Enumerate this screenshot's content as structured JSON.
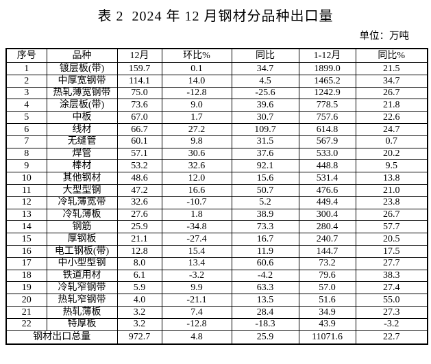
{
  "title": "表 2  2024 年 12 月钢材分品种出口量",
  "unit": "单位：万吨",
  "table": {
    "columns": [
      "序号",
      "品种",
      "12月",
      "环比%",
      "同比",
      "1-12月",
      "同比%"
    ],
    "rows": [
      {
        "no": "1",
        "name": "镀层板(带)",
        "values": [
          "159.7",
          "0.1",
          "34.7",
          "1899.0",
          "21.5"
        ]
      },
      {
        "no": "2",
        "name": "中厚宽钢带",
        "values": [
          "114.1",
          "14.0",
          "4.5",
          "1465.2",
          "34.7"
        ]
      },
      {
        "no": "3",
        "name": "热轧薄宽钢带",
        "values": [
          "75.0",
          "-12.8",
          "-25.6",
          "1242.9",
          "26.7"
        ]
      },
      {
        "no": "4",
        "name": "涂层板(带)",
        "values": [
          "73.6",
          "9.0",
          "39.6",
          "778.5",
          "21.8"
        ]
      },
      {
        "no": "5",
        "name": "中板",
        "values": [
          "67.0",
          "1.7",
          "30.7",
          "757.6",
          "22.6"
        ]
      },
      {
        "no": "6",
        "name": "线材",
        "values": [
          "66.7",
          "27.2",
          "109.7",
          "614.8",
          "24.7"
        ]
      },
      {
        "no": "7",
        "name": "无缝管",
        "values": [
          "60.1",
          "9.8",
          "31.5",
          "567.9",
          "0.7"
        ]
      },
      {
        "no": "8",
        "name": "焊管",
        "values": [
          "57.1",
          "30.6",
          "37.6",
          "533.0",
          "20.2"
        ]
      },
      {
        "no": "9",
        "name": "棒材",
        "values": [
          "53.2",
          "32.6",
          "92.1",
          "448.8",
          "9.5"
        ]
      },
      {
        "no": "10",
        "name": "其他钢材",
        "values": [
          "48.6",
          "12.0",
          "15.6",
          "531.4",
          "13.8"
        ]
      },
      {
        "no": "11",
        "name": "大型型钢",
        "values": [
          "47.2",
          "16.6",
          "50.7",
          "476.6",
          "21.0"
        ]
      },
      {
        "no": "12",
        "name": "冷轧薄宽带",
        "values": [
          "32.6",
          "-10.7",
          "5.2",
          "449.4",
          "23.8"
        ]
      },
      {
        "no": "13",
        "name": "冷轧薄板",
        "values": [
          "27.6",
          "1.8",
          "38.9",
          "300.4",
          "26.7"
        ]
      },
      {
        "no": "14",
        "name": "钢筋",
        "values": [
          "25.9",
          "-34.8",
          "73.3",
          "280.4",
          "57.7"
        ]
      },
      {
        "no": "15",
        "name": "厚钢板",
        "values": [
          "21.1",
          "-27.4",
          "16.7",
          "240.7",
          "20.5"
        ]
      },
      {
        "no": "16",
        "name": "电工钢板(带)",
        "values": [
          "12.8",
          "15.4",
          "11.9",
          "144.7",
          "17.5"
        ]
      },
      {
        "no": "17",
        "name": "中小型型钢",
        "values": [
          "8.0",
          "13.4",
          "60.6",
          "73.2",
          "27.7"
        ]
      },
      {
        "no": "18",
        "name": "铁道用材",
        "values": [
          "6.1",
          "-3.2",
          "-4.2",
          "79.6",
          "38.3"
        ]
      },
      {
        "no": "19",
        "name": "冷轧窄钢带",
        "values": [
          "5.9",
          "9.9",
          "63.3",
          "57.0",
          "27.4"
        ]
      },
      {
        "no": "20",
        "name": "热轧窄钢带",
        "values": [
          "4.0",
          "-21.1",
          "13.5",
          "51.6",
          "55.0"
        ]
      },
      {
        "no": "21",
        "name": "热轧薄板",
        "values": [
          "3.2",
          "7.4",
          "28.4",
          "34.9",
          "27.3"
        ]
      },
      {
        "no": "22",
        "name": "特厚板",
        "values": [
          "3.2",
          "-12.8",
          "-18.3",
          "43.9",
          "-3.2"
        ]
      }
    ],
    "total": {
      "label": "钢材出口总量",
      "values": [
        "972.7",
        "4.8",
        "25.9",
        "11071.6",
        "22.7"
      ]
    }
  }
}
